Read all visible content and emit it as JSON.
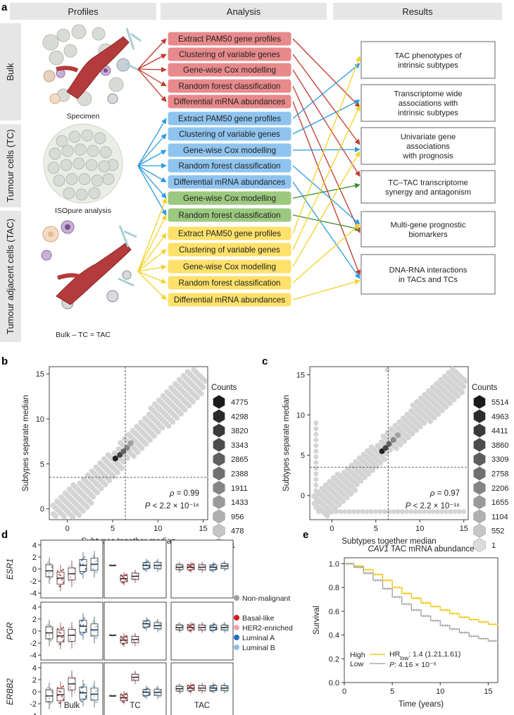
{
  "panels": {
    "a": "a",
    "b": "b",
    "c": "c",
    "d": "d",
    "e": "e"
  },
  "panel_a": {
    "headers": [
      "Profiles",
      "Analysis",
      "Results"
    ],
    "row_labels": [
      "Bulk",
      "Tumour cells (TC)",
      "Tumour adjacent cells (TAC)"
    ],
    "captions": [
      "Specimen",
      "ISOpure analysis",
      "Bulk – TC = TAC"
    ],
    "bulk_boxes": [
      "Extract PAM50 gene profiles",
      "Clustering of variable genes",
      "Gene-wise Cox modelling",
      "Random forest classification",
      "Differential mRNA abundances"
    ],
    "tc_boxes": [
      "Extract PAM50 gene profiles",
      "Clustering of variable genes",
      "Gene-wise Cox modelling",
      "Random forest classification",
      "Differential mRNA abundances"
    ],
    "green_boxes": [
      "Gene-wise Cox modelling",
      "Random forest classification"
    ],
    "tac_boxes": [
      "Extract PAM50 gene profiles",
      "Clustering of variable genes",
      "Gene-wise Cox modelling",
      "Random forest classification",
      "Differential mRNA abundances"
    ],
    "results": [
      [
        "TAC phenotypes of",
        "intrinsic subtypes"
      ],
      [
        "Transcriptome wide",
        "associations with",
        "intrinsic subtypes"
      ],
      [
        "Univariate gene",
        "associations",
        "with prognosis"
      ],
      [
        "TC–TAC transcriptome",
        "synergy and antagonism"
      ],
      [
        "Multi-gene prognostic",
        "biomarkers"
      ],
      [
        "DNA-RNA interactions",
        "in TACs and TCs"
      ]
    ],
    "colors": {
      "bulk": "#e8898b",
      "tc": "#8ec4ef",
      "green": "#9cc97f",
      "tac": "#fde16a",
      "header": "#e6e6e6"
    }
  },
  "chart_data": [
    {
      "type": "heatmap",
      "panel": "b",
      "xlabel": "Subtypes together median",
      "ylabel": "Subtypes separate median",
      "xlim": [
        -2,
        15.5
      ],
      "ylim": [
        -1.2,
        15.8
      ],
      "xticks": [
        0,
        5,
        10,
        15
      ],
      "yticks": [
        0,
        5,
        10,
        15
      ],
      "ref_lines": {
        "x": 6.4,
        "y": 3.5
      },
      "legend_title": "Counts",
      "legend_counts": [
        "4775",
        "4298",
        "3820",
        "3343",
        "2865",
        "2388",
        "1911",
        "1433",
        "956",
        "478",
        "1"
      ],
      "rho": "0.99",
      "p": "2.2 × 10⁻¹⁶",
      "dark_points": [
        [
          5.3,
          5.6
        ],
        [
          5.8,
          6.0
        ],
        [
          6.2,
          6.4
        ],
        [
          6.6,
          6.8
        ],
        [
          7.0,
          7.3
        ]
      ]
    },
    {
      "type": "heatmap",
      "panel": "c",
      "xlabel": "Subtypes together median",
      "ylabel": "Subtypes separate median",
      "xlim": [
        -2.5,
        15.5
      ],
      "ylim": [
        -3,
        16
      ],
      "xticks": [
        0,
        5,
        10,
        15
      ],
      "yticks": [
        0,
        5,
        10,
        15
      ],
      "ref_lines": {
        "x": 6.4,
        "y": 3.5
      },
      "legend_title": "Counts",
      "legend_counts": [
        "5514",
        "4963",
        "4411",
        "3860",
        "3309",
        "2758",
        "2206",
        "1655",
        "1104",
        "552",
        "1"
      ],
      "rho": "0.97",
      "p": "2.2 × 10⁻¹⁶",
      "dark_points": [
        [
          5.7,
          5.5
        ],
        [
          6.1,
          5.9
        ],
        [
          6.5,
          6.4
        ],
        [
          7.0,
          6.9
        ],
        [
          7.5,
          7.5
        ]
      ]
    },
    {
      "type": "box",
      "panel": "d",
      "rows": [
        "ESR1",
        "PGR",
        "ERBB2"
      ],
      "columns": [
        "Bulk",
        "TC",
        "TAC"
      ],
      "yticks": [
        -4,
        -2,
        0,
        2,
        4
      ],
      "groups": [
        "Non-malignant",
        "Basal-like",
        "HER2-enriched",
        "Luminal A",
        "Luminal B"
      ],
      "group_colors": [
        "#9e9e9e",
        "#d7191c",
        "#f4a5b5",
        "#1f6fbf",
        "#8fc0e6"
      ],
      "medians": {
        "ESR1": {
          "Bulk": [
            -0.3,
            -1.5,
            -0.8,
            0.6,
            0.8
          ],
          "TC": [
            0.6,
            -1.6,
            -1.2,
            0.6,
            0.6
          ],
          "TAC": [
            0.3,
            0.3,
            0.3,
            0.3,
            0.5
          ]
        },
        "PGR": {
          "Bulk": [
            -0.3,
            -0.8,
            -0.7,
            0.8,
            0.2
          ],
          "TC": [
            -0.7,
            -1.5,
            -1.4,
            1.2,
            0.9
          ],
          "TAC": [
            0.6,
            0.6,
            0.6,
            0.6,
            0.6
          ]
        },
        "ERBB2": {
          "Bulk": [
            -0.7,
            -0.5,
            1.3,
            -0.2,
            -0.4
          ],
          "TC": [
            -0.7,
            -1.0,
            2.4,
            -0.1,
            -0.1
          ],
          "TAC": [
            0.5,
            0.6,
            0.6,
            0.6,
            0.6
          ]
        }
      }
    },
    {
      "type": "line",
      "panel": "e",
      "title_gene": "CAV1",
      "title_rest": " TAC mRNA abundance",
      "xlabel": "Time (years)",
      "ylabel": "Survival",
      "xlim": [
        0,
        16
      ],
      "ylim": [
        0,
        1.05
      ],
      "xticks": [
        0,
        5,
        10,
        15
      ],
      "yticks": [
        0,
        0.2,
        0.4,
        0.6,
        0.8,
        1.0
      ],
      "series": [
        {
          "name": "High",
          "color": "#f2c200",
          "x": [
            0,
            1,
            2,
            3,
            4,
            5,
            6,
            7,
            8,
            9,
            10,
            11,
            12,
            13,
            14,
            15,
            16
          ],
          "y": [
            1.0,
            0.98,
            0.95,
            0.91,
            0.86,
            0.8,
            0.75,
            0.71,
            0.67,
            0.64,
            0.61,
            0.58,
            0.55,
            0.53,
            0.51,
            0.49,
            0.48
          ]
        },
        {
          "name": "Low",
          "color": "#9e9e9e",
          "x": [
            0,
            1,
            2,
            3,
            4,
            5,
            6,
            7,
            8,
            9,
            10,
            11,
            12,
            13,
            14,
            15,
            16
          ],
          "y": [
            1.0,
            0.97,
            0.92,
            0.86,
            0.79,
            0.72,
            0.66,
            0.61,
            0.56,
            0.52,
            0.48,
            0.45,
            0.42,
            0.39,
            0.37,
            0.35,
            0.34
          ]
        }
      ],
      "hr": "HR",
      "hr_sub": "low",
      "hr_val": ": 1.4 (1.21,1.61)",
      "p_label": "P",
      "p_val": ": 4.16 × 10⁻⁶"
    }
  ]
}
